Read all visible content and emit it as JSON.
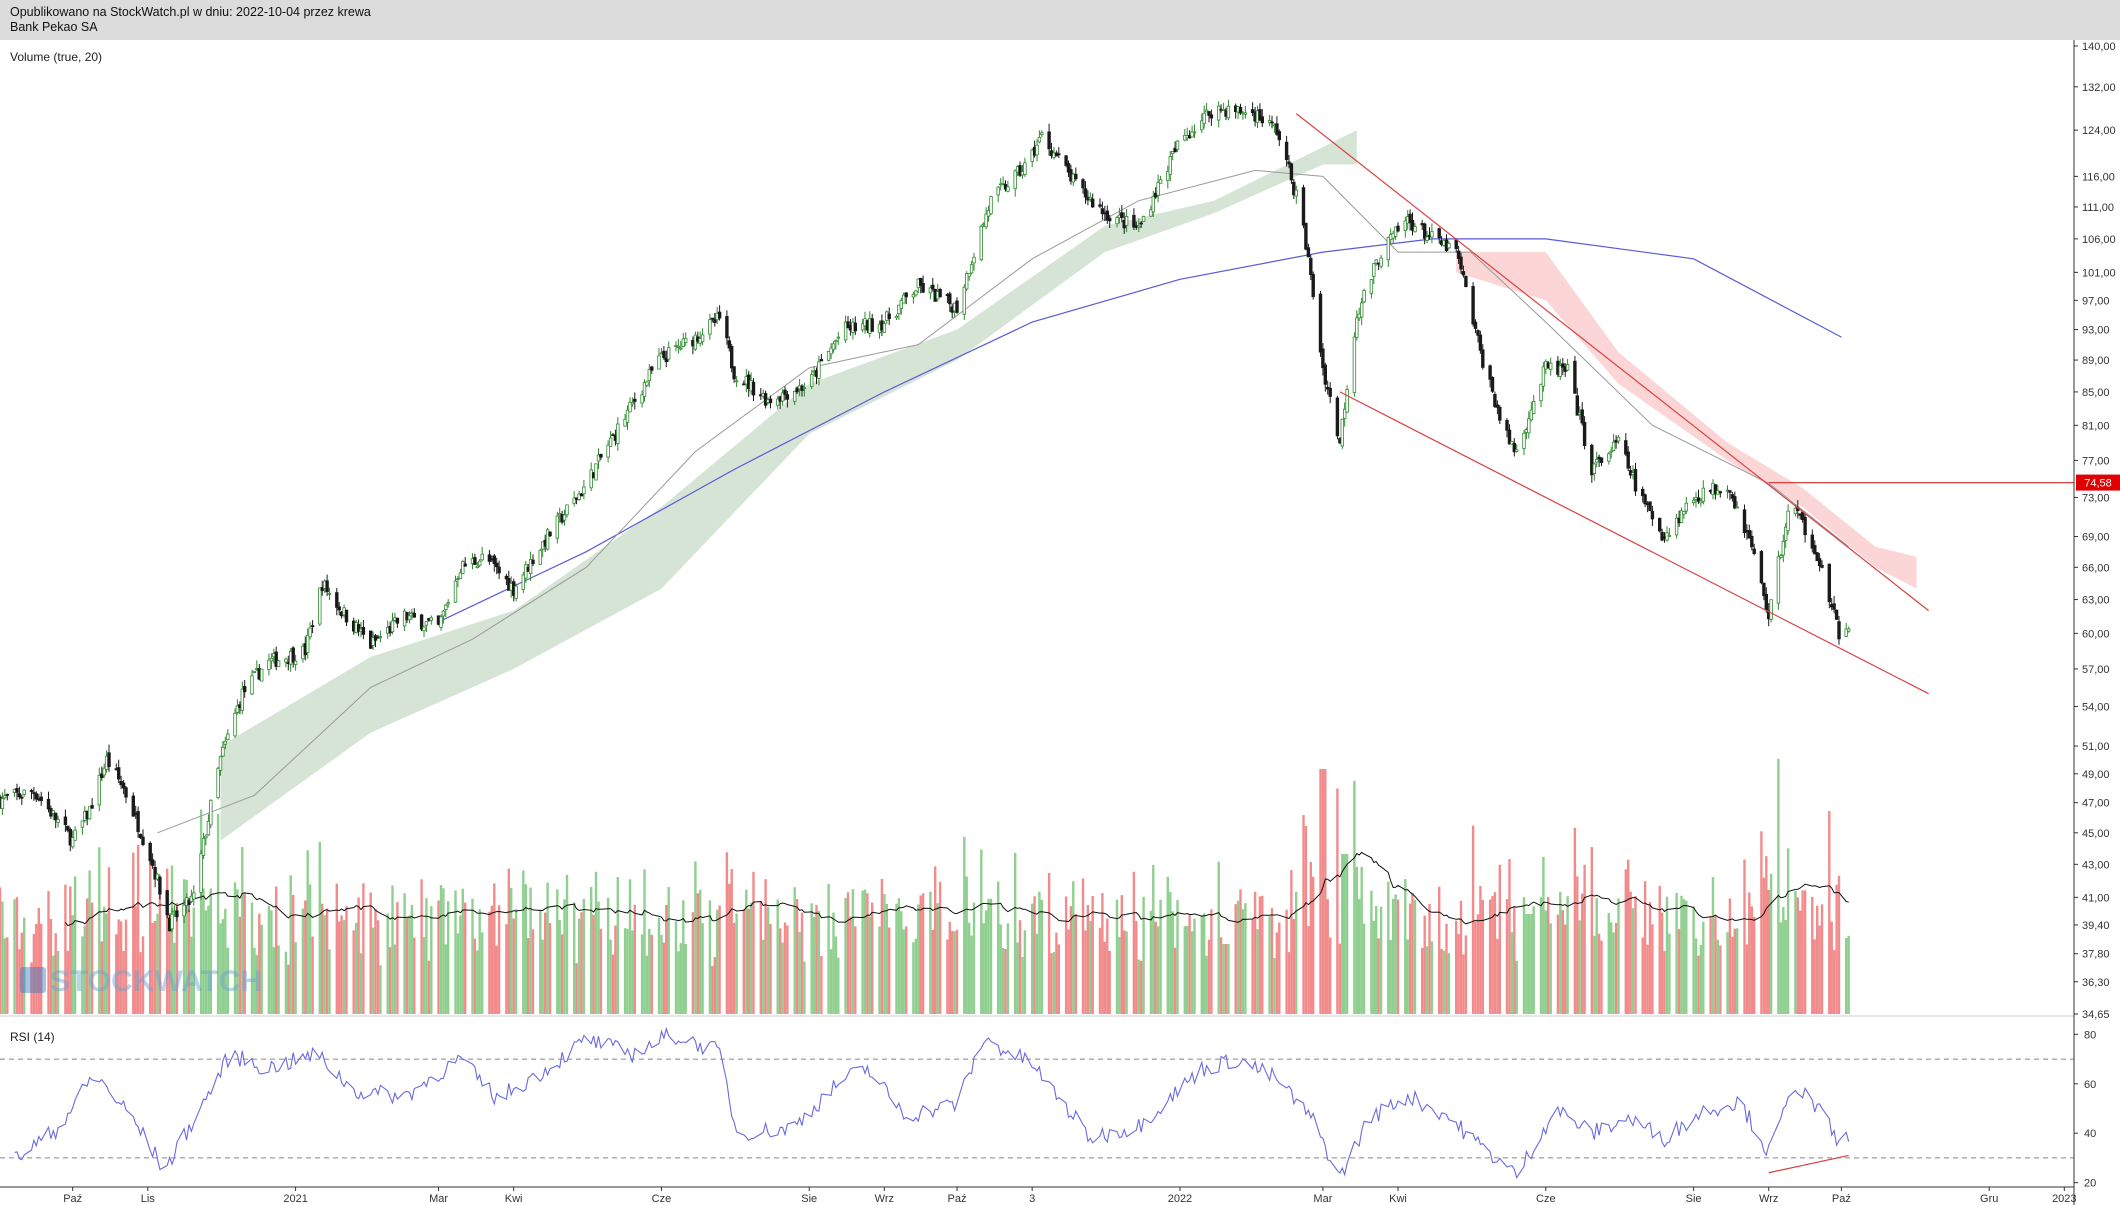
{
  "header": {
    "published": "Opublikowano na StockWatch.pl w dniu: 2022-10-04 przez krewa",
    "instrument": "Bank Pekao SA"
  },
  "watermark": "STOCKWATCH",
  "colors": {
    "up": "#2e8b2e",
    "down": "#1a1a1a",
    "volume_up": "#8fcf8f",
    "volume_down": "#f28b8b",
    "cloud_bull": "#d5e4d5",
    "cloud_bear": "#fcd6d6",
    "sma_200": "#5a5ad8",
    "sma_50": "#9a9a9a",
    "trendline": "#d94040",
    "rsi_line": "#6a6ae0",
    "price_tag": "#e00000"
  },
  "chart_data": {
    "type": "candlestick",
    "x_range": [
      "2020-09-01",
      "2023-01-05"
    ],
    "x_ticks": [
      {
        "date": "2020-10-01",
        "label": "Paź"
      },
      {
        "date": "2020-11-01",
        "label": "Lis"
      },
      {
        "date": "2021-01-01",
        "label": "2021"
      },
      {
        "date": "2021-03-01",
        "label": "Mar"
      },
      {
        "date": "2021-04-01",
        "label": "Kwi"
      },
      {
        "date": "2021-06-01",
        "label": "Cze"
      },
      {
        "date": "2021-08-01",
        "label": "Sie"
      },
      {
        "date": "2021-09-01",
        "label": "Wrz"
      },
      {
        "date": "2021-10-01",
        "label": "Paź"
      },
      {
        "date": "2021-11-01",
        "label": "3"
      },
      {
        "date": "2022-01-01",
        "label": "2022"
      },
      {
        "date": "2022-03-01",
        "label": "Mar"
      },
      {
        "date": "2022-04-01",
        "label": "Kwi"
      },
      {
        "date": "2022-06-01",
        "label": "Cze"
      },
      {
        "date": "2022-08-01",
        "label": "Sie"
      },
      {
        "date": "2022-09-01",
        "label": "Wrz"
      },
      {
        "date": "2022-10-01",
        "label": "Paź"
      },
      {
        "date": "2022-12-01",
        "label": "Gru"
      },
      {
        "date": "2023-01-01",
        "label": "2023"
      }
    ],
    "price_axis": {
      "scale": "log",
      "range": [
        34.65,
        140.0
      ],
      "ticks": [
        "140,00",
        "132,00",
        "124,00",
        "116,00",
        "111,00",
        "106,00",
        "101,00",
        "97,00",
        "93,00",
        "89,00",
        "85,00",
        "81,00",
        "77,00",
        "73,00",
        "69,00",
        "66,00",
        "63,00",
        "60,00",
        "57,00",
        "54,00",
        "51,00",
        "49,00",
        "47,00",
        "45,00",
        "43,00",
        "41,00",
        "39,40",
        "37,80",
        "36,30",
        "34,65"
      ]
    },
    "price_marker": {
      "value": 74.58,
      "label": "74,58"
    },
    "price_path": [
      [
        "2020-09-01",
        47.2
      ],
      [
        "2020-09-15",
        47.8
      ],
      [
        "2020-10-01",
        44.5
      ],
      [
        "2020-10-08",
        46.5
      ],
      [
        "2020-10-15",
        50.0
      ],
      [
        "2020-10-22",
        48.0
      ],
      [
        "2020-11-02",
        43.5
      ],
      [
        "2020-11-10",
        39.5
      ],
      [
        "2020-11-20",
        41.0
      ],
      [
        "2020-12-01",
        50.0
      ],
      [
        "2020-12-10",
        55.0
      ],
      [
        "2020-12-20",
        57.5
      ],
      [
        "2021-01-05",
        58.5
      ],
      [
        "2021-01-12",
        64.5
      ],
      [
        "2021-01-20",
        62.0
      ],
      [
        "2021-02-01",
        59.0
      ],
      [
        "2021-02-15",
        61.5
      ],
      [
        "2021-03-01",
        60.5
      ],
      [
        "2021-03-10",
        66.0
      ],
      [
        "2021-03-20",
        67.0
      ],
      [
        "2021-04-01",
        64.0
      ],
      [
        "2021-04-15",
        69.0
      ],
      [
        "2021-04-30",
        74.0
      ],
      [
        "2021-05-15",
        81.0
      ],
      [
        "2021-05-31",
        89.0
      ],
      [
        "2021-06-15",
        92.0
      ],
      [
        "2021-06-25",
        94.5
      ],
      [
        "2021-07-01",
        87.5
      ],
      [
        "2021-07-15",
        84.0
      ],
      [
        "2021-08-01",
        86.0
      ],
      [
        "2021-08-15",
        93.0
      ],
      [
        "2021-09-01",
        94.0
      ],
      [
        "2021-09-15",
        99.0
      ],
      [
        "2021-10-01",
        96.0
      ],
      [
        "2021-10-15",
        112.0
      ],
      [
        "2021-10-30",
        118.0
      ],
      [
        "2021-11-05",
        123.0
      ],
      [
        "2021-11-20",
        114.0
      ],
      [
        "2021-12-01",
        110.0
      ],
      [
        "2021-12-15",
        107.5
      ],
      [
        "2022-01-01",
        122.0
      ],
      [
        "2022-01-15",
        128.0
      ],
      [
        "2022-02-01",
        127.0
      ],
      [
        "2022-02-10",
        124.0
      ],
      [
        "2022-02-20",
        110.0
      ],
      [
        "2022-03-01",
        88.0
      ],
      [
        "2022-03-08",
        79.0
      ],
      [
        "2022-03-15",
        95.0
      ],
      [
        "2022-03-25",
        104.0
      ],
      [
        "2022-04-05",
        109.0
      ],
      [
        "2022-04-15",
        106.0
      ],
      [
        "2022-04-25",
        104.0
      ],
      [
        "2022-05-05",
        90.0
      ],
      [
        "2022-05-15",
        80.0
      ],
      [
        "2022-05-20",
        78.0
      ],
      [
        "2022-06-01",
        88.0
      ],
      [
        "2022-06-10",
        87.5
      ],
      [
        "2022-06-20",
        76.0
      ],
      [
        "2022-07-01",
        79.0
      ],
      [
        "2022-07-10",
        73.0
      ],
      [
        "2022-07-20",
        69.0
      ],
      [
        "2022-08-01",
        73.0
      ],
      [
        "2022-08-15",
        74.5
      ],
      [
        "2022-08-25",
        68.0
      ],
      [
        "2022-09-01",
        61.5
      ],
      [
        "2022-09-10",
        72.5
      ],
      [
        "2022-09-20",
        68.0
      ],
      [
        "2022-10-01",
        59.0
      ],
      [
        "2022-10-04",
        61.0
      ]
    ],
    "sma_200_path": [
      [
        "2021-03-01",
        61.0
      ],
      [
        "2021-05-01",
        67.5
      ],
      [
        "2021-07-01",
        76.0
      ],
      [
        "2021-09-01",
        85.0
      ],
      [
        "2021-11-01",
        94.0
      ],
      [
        "2022-01-01",
        100.0
      ],
      [
        "2022-03-01",
        104.0
      ],
      [
        "2022-04-15",
        106.0
      ],
      [
        "2022-06-01",
        106.0
      ],
      [
        "2022-08-01",
        103.0
      ],
      [
        "2022-10-01",
        92.0
      ]
    ],
    "sma_50_path": [
      [
        "2020-11-05",
        45.0
      ],
      [
        "2020-12-15",
        47.5
      ],
      [
        "2021-02-01",
        55.5
      ],
      [
        "2021-03-15",
        59.5
      ],
      [
        "2021-05-01",
        66.0
      ],
      [
        "2021-06-15",
        78.0
      ],
      [
        "2021-08-01",
        88.0
      ],
      [
        "2021-09-15",
        91.0
      ],
      [
        "2021-11-01",
        103.0
      ],
      [
        "2021-12-15",
        112.0
      ],
      [
        "2022-02-01",
        117.0
      ],
      [
        "2022-03-01",
        116.0
      ],
      [
        "2022-04-01",
        104.0
      ],
      [
        "2022-05-01",
        104.0
      ],
      [
        "2022-06-01",
        94.0
      ],
      [
        "2022-07-15",
        81.0
      ],
      [
        "2022-09-01",
        74.5
      ],
      [
        "2022-10-04",
        68.0
      ]
    ],
    "cloud_bull_upper": [
      [
        "2020-12-01",
        51.0
      ],
      [
        "2021-02-01",
        58.0
      ],
      [
        "2021-04-01",
        62.0
      ],
      [
        "2021-06-01",
        72.0
      ],
      [
        "2021-08-01",
        86.0
      ],
      [
        "2021-10-01",
        93.0
      ],
      [
        "2021-12-01",
        108.0
      ],
      [
        "2022-01-15",
        112.0
      ],
      [
        "2022-03-01",
        121.0
      ],
      [
        "2022-03-15",
        124.0
      ]
    ],
    "cloud_bull_lower": [
      [
        "2020-12-01",
        44.5
      ],
      [
        "2021-02-01",
        52.0
      ],
      [
        "2021-04-01",
        57.0
      ],
      [
        "2021-06-01",
        64.0
      ],
      [
        "2021-08-01",
        80.0
      ],
      [
        "2021-10-01",
        89.0
      ],
      [
        "2021-12-01",
        104.0
      ],
      [
        "2022-01-15",
        110.0
      ],
      [
        "2022-03-01",
        118.0
      ],
      [
        "2022-03-15",
        118.0
      ]
    ],
    "cloud_bear_upper": [
      [
        "2022-04-25",
        104.0
      ],
      [
        "2022-06-01",
        104.0
      ],
      [
        "2022-07-01",
        90.0
      ],
      [
        "2022-08-15",
        79.0
      ],
      [
        "2022-09-15",
        74.0
      ],
      [
        "2022-10-15",
        68.0
      ],
      [
        "2022-11-01",
        67.0
      ]
    ],
    "cloud_bear_lower": [
      [
        "2022-04-25",
        101.0
      ],
      [
        "2022-06-01",
        97.0
      ],
      [
        "2022-07-01",
        86.0
      ],
      [
        "2022-08-15",
        77.0
      ],
      [
        "2022-09-15",
        72.0
      ],
      [
        "2022-10-15",
        66.0
      ],
      [
        "2022-11-01",
        64.0
      ]
    ],
    "trendlines": [
      {
        "from": [
          "2022-02-18",
          127.0
        ],
        "to": [
          "2022-11-06",
          62.0
        ]
      },
      {
        "from": [
          "2022-03-08",
          85.0
        ],
        "to": [
          "2022-11-06",
          55.0
        ]
      },
      {
        "from": [
          "2022-09-01",
          74.58
        ],
        "to": [
          "2023-01-05",
          74.58
        ]
      }
    ],
    "volume": {
      "label": "Volume (true, 20)",
      "spikes": [
        {
          "date": "2022-03-01",
          "value": 98
        },
        {
          "date": "2022-03-10",
          "value": 64
        },
        {
          "date": "2022-01-20",
          "value": 28
        },
        {
          "date": "2022-05-25",
          "value": 40
        }
      ]
    },
    "rsi": {
      "label": "RSI (14)",
      "period": 14,
      "range": [
        15,
        85
      ],
      "levels": [
        70,
        30
      ],
      "ticks": [
        80,
        60,
        40,
        20
      ],
      "path": [
        [
          "2020-09-05",
          28
        ],
        [
          "2020-09-25",
          42
        ],
        [
          "2020-10-10",
          64
        ],
        [
          "2020-10-25",
          47
        ],
        [
          "2020-11-08",
          25
        ],
        [
          "2020-11-25",
          54
        ],
        [
          "2020-12-05",
          72
        ],
        [
          "2020-12-20",
          66
        ],
        [
          "2021-01-10",
          72
        ],
        [
          "2021-01-25",
          57
        ],
        [
          "2021-02-15",
          55
        ],
        [
          "2021-03-10",
          70
        ],
        [
          "2021-03-25",
          54
        ],
        [
          "2021-04-15",
          66
        ],
        [
          "2021-05-01",
          78
        ],
        [
          "2021-05-20",
          72
        ],
        [
          "2021-06-05",
          80
        ],
        [
          "2021-06-25",
          73
        ],
        [
          "2021-07-02",
          40
        ],
        [
          "2021-07-25",
          42
        ],
        [
          "2021-08-15",
          62
        ],
        [
          "2021-08-25",
          66
        ],
        [
          "2021-09-10",
          47
        ],
        [
          "2021-10-01",
          52
        ],
        [
          "2021-10-12",
          78
        ],
        [
          "2021-11-01",
          68
        ],
        [
          "2021-11-25",
          38
        ],
        [
          "2021-12-15",
          43
        ],
        [
          "2022-01-10",
          66
        ],
        [
          "2022-01-25",
          70
        ],
        [
          "2022-02-10",
          62
        ],
        [
          "2022-02-25",
          45
        ],
        [
          "2022-03-08",
          22
        ],
        [
          "2022-03-20",
          46
        ],
        [
          "2022-04-05",
          55
        ],
        [
          "2022-04-20",
          48
        ],
        [
          "2022-05-05",
          35
        ],
        [
          "2022-05-20",
          23
        ],
        [
          "2022-06-05",
          50
        ],
        [
          "2022-06-20",
          40
        ],
        [
          "2022-07-05",
          46
        ],
        [
          "2022-07-20",
          38
        ],
        [
          "2022-08-05",
          49
        ],
        [
          "2022-08-20",
          53
        ],
        [
          "2022-09-01",
          32
        ],
        [
          "2022-09-12",
          60
        ],
        [
          "2022-09-25",
          45
        ],
        [
          "2022-10-01",
          33
        ],
        [
          "2022-10-04",
          40
        ]
      ],
      "divergence_line": {
        "from": [
          "2022-09-01",
          24
        ],
        "to": [
          "2022-10-04",
          31
        ]
      }
    }
  }
}
